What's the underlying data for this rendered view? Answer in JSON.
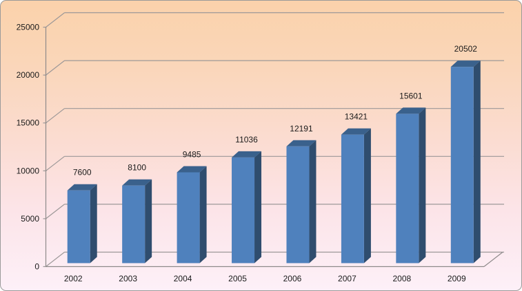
{
  "chart_data": {
    "type": "bar",
    "view": "3d-column",
    "title": "",
    "xlabel": "",
    "ylabel": "",
    "categories": [
      "2002",
      "2003",
      "2004",
      "2005",
      "2006",
      "2007",
      "2008",
      "2009"
    ],
    "values": [
      7600,
      8100,
      9485,
      11036,
      12191,
      13421,
      15601,
      20502
    ],
    "data_labels": [
      "7600",
      "8100",
      "9485",
      "11036",
      "12191",
      "13421",
      "15601",
      "20502"
    ],
    "ylim": [
      0,
      25000
    ],
    "ytick_interval": 5000,
    "ytick_labels": [
      "0",
      "5000",
      "10000",
      "15000",
      "20000",
      "25000"
    ],
    "grid": true,
    "legend": "none"
  },
  "colors": {
    "bar_front": "#4f81bd",
    "bar_side": "#2f4d6e",
    "bar_top": "#3a618c",
    "gridline": "#9c9898",
    "axis": "#8e8a8a",
    "text": "#1a1a1a",
    "frame_border": "#9a9a9a",
    "bg_top": "#fbd2ab",
    "bg_bottom": "#fdf0f8"
  }
}
